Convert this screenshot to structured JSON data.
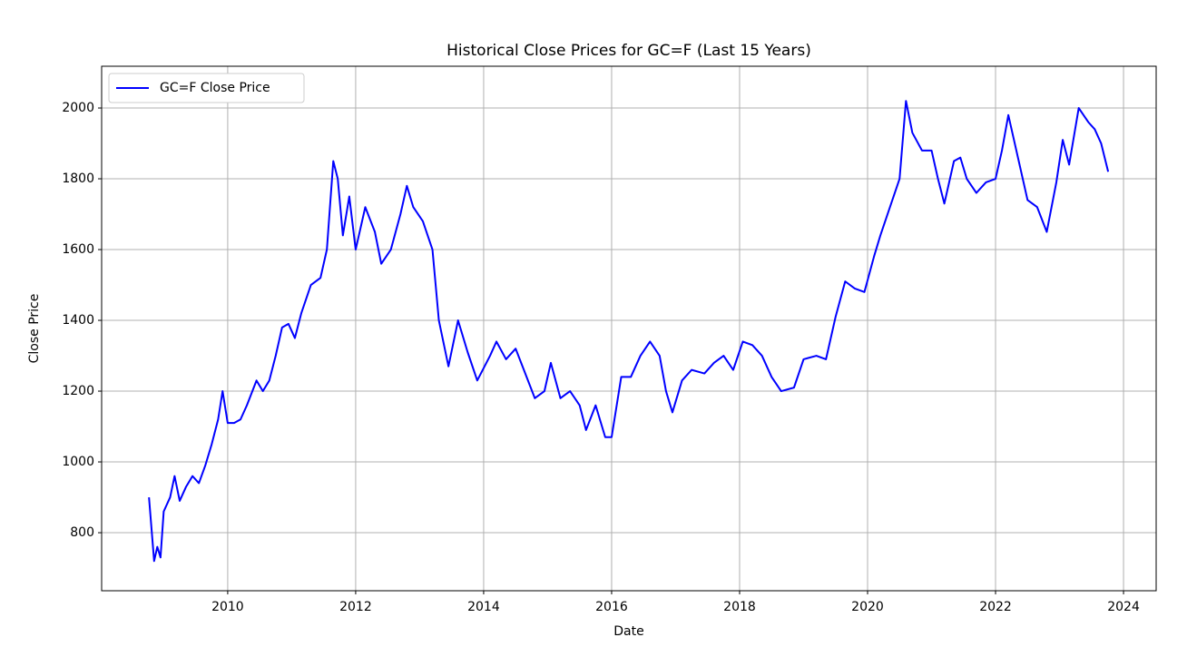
{
  "chart_data": {
    "type": "line",
    "title": "Historical Close Prices for GC=F (Last 15 Years)",
    "x_label": "Date",
    "y_label": "Close Price",
    "x": [
      2008.77,
      2008.85,
      2008.9,
      2008.95,
      2009.0,
      2009.1,
      2009.17,
      2009.25,
      2009.35,
      2009.45,
      2009.55,
      2009.65,
      2009.75,
      2009.85,
      2009.92,
      2010.0,
      2010.1,
      2010.2,
      2010.3,
      2010.45,
      2010.55,
      2010.65,
      2010.75,
      2010.85,
      2010.95,
      2011.05,
      2011.15,
      2011.3,
      2011.45,
      2011.55,
      2011.65,
      2011.72,
      2011.8,
      2011.9,
      2012.0,
      2012.15,
      2012.3,
      2012.4,
      2012.55,
      2012.7,
      2012.8,
      2012.9,
      2013.05,
      2013.2,
      2013.3,
      2013.45,
      2013.6,
      2013.75,
      2013.9,
      2014.1,
      2014.2,
      2014.35,
      2014.5,
      2014.65,
      2014.8,
      2014.95,
      2015.05,
      2015.2,
      2015.35,
      2015.5,
      2015.6,
      2015.75,
      2015.9,
      2016.0,
      2016.15,
      2016.3,
      2016.45,
      2016.6,
      2016.75,
      2016.85,
      2016.95,
      2017.1,
      2017.25,
      2017.45,
      2017.6,
      2017.75,
      2017.9,
      2018.05,
      2018.2,
      2018.35,
      2018.5,
      2018.65,
      2018.85,
      2019.0,
      2019.2,
      2019.35,
      2019.5,
      2019.65,
      2019.8,
      2019.95,
      2020.1,
      2020.2,
      2020.35,
      2020.5,
      2020.6,
      2020.7,
      2020.85,
      2021.0,
      2021.1,
      2021.2,
      2021.35,
      2021.45,
      2021.55,
      2021.7,
      2021.85,
      2022.0,
      2022.1,
      2022.2,
      2022.35,
      2022.5,
      2022.65,
      2022.8,
      2022.95,
      2023.05,
      2023.15,
      2023.3,
      2023.45,
      2023.55,
      2023.65,
      2023.76
    ],
    "series": [
      {
        "name": "GC=F Close Price",
        "color": "#0000ff",
        "values": [
          900,
          720,
          760,
          730,
          860,
          900,
          960,
          890,
          930,
          960,
          940,
          990,
          1050,
          1120,
          1200,
          1110,
          1110,
          1120,
          1160,
          1230,
          1200,
          1230,
          1300,
          1380,
          1390,
          1350,
          1420,
          1500,
          1520,
          1600,
          1850,
          1800,
          1640,
          1750,
          1600,
          1720,
          1650,
          1560,
          1600,
          1700,
          1780,
          1720,
          1680,
          1600,
          1400,
          1270,
          1400,
          1310,
          1230,
          1300,
          1340,
          1290,
          1320,
          1250,
          1180,
          1200,
          1280,
          1180,
          1200,
          1160,
          1090,
          1160,
          1070,
          1070,
          1240,
          1240,
          1300,
          1340,
          1300,
          1200,
          1140,
          1230,
          1260,
          1250,
          1280,
          1300,
          1260,
          1340,
          1330,
          1300,
          1240,
          1200,
          1210,
          1290,
          1300,
          1290,
          1410,
          1510,
          1490,
          1480,
          1580,
          1640,
          1720,
          1800,
          2020,
          1930,
          1880,
          1880,
          1800,
          1730,
          1850,
          1860,
          1800,
          1760,
          1790,
          1800,
          1880,
          1980,
          1860,
          1740,
          1720,
          1650,
          1790,
          1910,
          1840,
          2000,
          1960,
          1940,
          1900,
          1820
        ]
      }
    ],
    "xlim": [
      2008.03,
      2024.51
    ],
    "ylim": [
      636,
      2118
    ],
    "xticks": [
      2010,
      2012,
      2014,
      2016,
      2018,
      2020,
      2022,
      2024
    ],
    "yticks": [
      800,
      1000,
      1200,
      1400,
      1600,
      1800,
      2000
    ],
    "grid": true,
    "legend": "upper left"
  }
}
